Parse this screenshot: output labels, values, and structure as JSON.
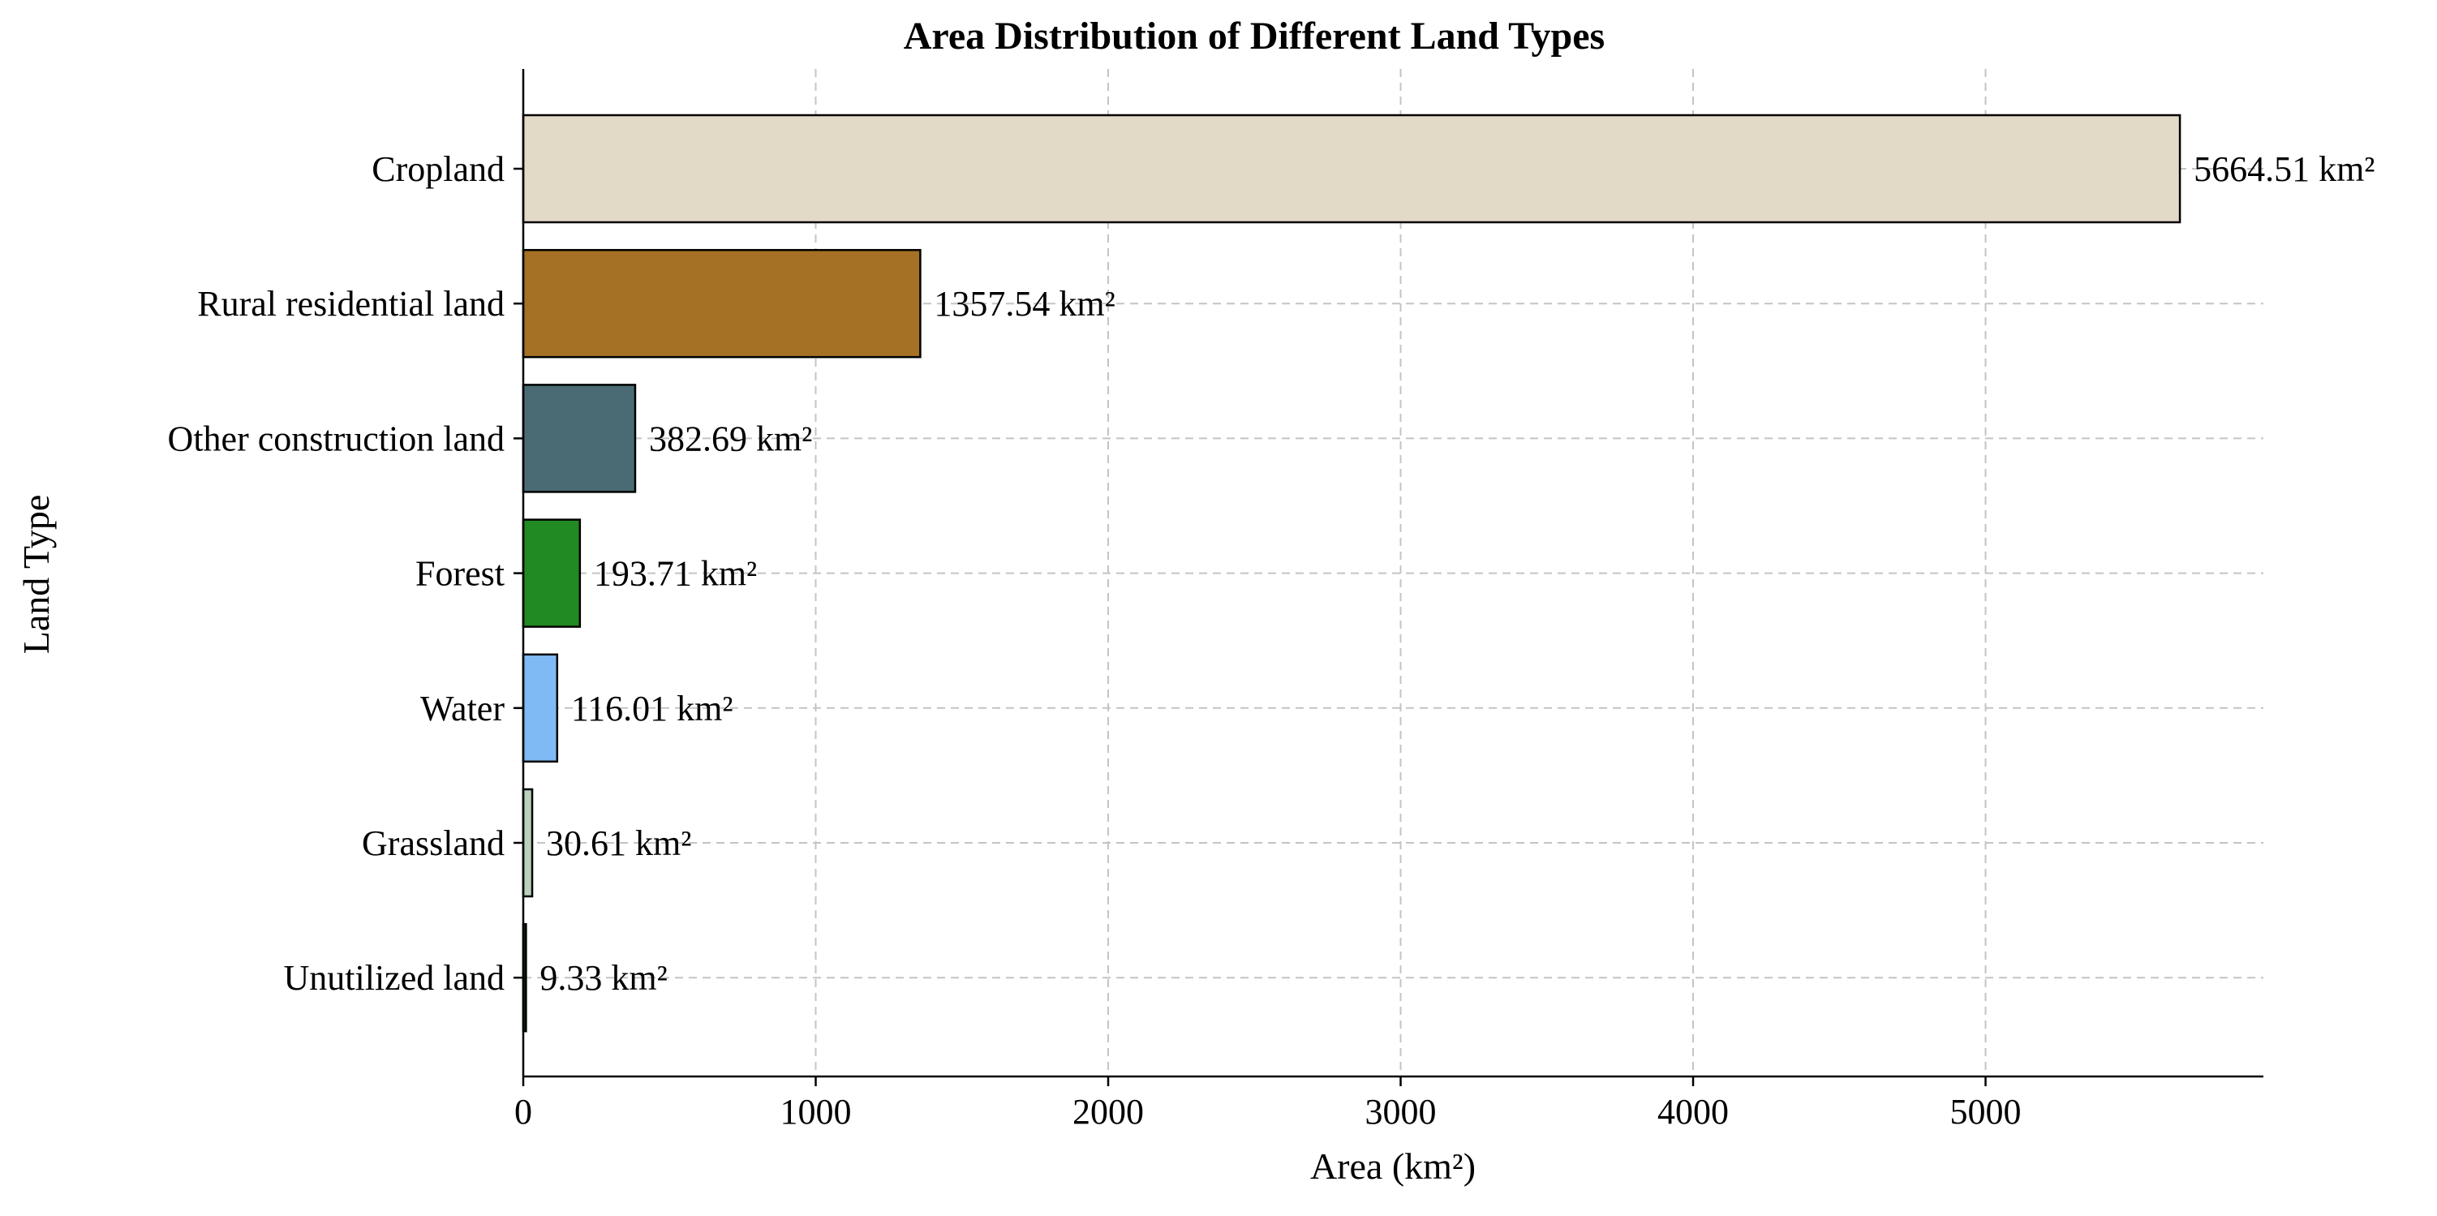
{
  "chart_data": {
    "type": "bar",
    "orientation": "horizontal",
    "title": "Area Distribution of Different Land Types",
    "xlabel": "Area (km²)",
    "ylabel": "Land Type",
    "xlim": [
      0,
      5950
    ],
    "xticks": [
      0,
      1000,
      2000,
      3000,
      4000,
      5000
    ],
    "xtick_labels": [
      "0",
      "1000",
      "2000",
      "3000",
      "4000",
      "5000"
    ],
    "grid": true,
    "categories": [
      "Cropland",
      "Rural residential land",
      "Other construction land",
      "Forest",
      "Water",
      "Grassland",
      "Unutilized land"
    ],
    "values": [
      5664.51,
      1357.54,
      382.69,
      193.71,
      116.01,
      30.61,
      9.33
    ],
    "value_labels": [
      "5664.51 km²",
      "1357.54 km²",
      "382.69 km²",
      "193.71 km²",
      "116.01 km²",
      "30.61 km²",
      "9.33 km²"
    ],
    "colors": [
      "#e3d9c7",
      "#a47125",
      "#4a6b74",
      "#228a22",
      "#7fbaf5",
      "#b8d1bb",
      "#0a3d0a"
    ]
  }
}
